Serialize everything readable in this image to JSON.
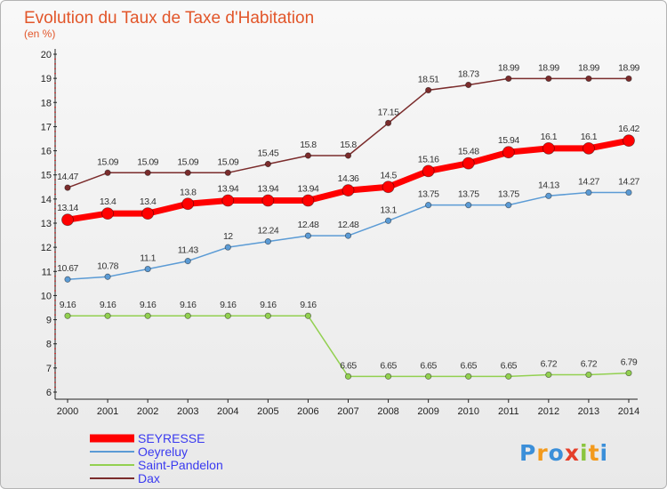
{
  "chart_data": {
    "type": "line",
    "title": "Evolution du Taux de Taxe d'Habitation",
    "subtitle": "(en %)",
    "xlabel": "",
    "ylabel": "",
    "categories": [
      "2000",
      "2001",
      "2002",
      "2003",
      "2004",
      "2005",
      "2006",
      "2007",
      "2008",
      "2009",
      "2010",
      "2011",
      "2012",
      "2013",
      "2014"
    ],
    "ylim": [
      6,
      20
    ],
    "yticks": [
      6,
      7,
      8,
      9,
      10,
      11,
      12,
      13,
      14,
      15,
      16,
      17,
      18,
      19,
      20
    ],
    "grid": false,
    "legend_position": "bottom-left",
    "series": [
      {
        "name": "SEYRESSE",
        "color": "#ff0000",
        "labels": [
          "13.14",
          "13.4",
          "13.4",
          "13.8",
          "13.94",
          "13.94",
          "13.94",
          "14.36",
          "14.5",
          "15.16",
          "15.48",
          "15.94",
          "16.1",
          "16.1",
          "16.42"
        ],
        "values": [
          13.14,
          13.4,
          13.4,
          13.8,
          13.94,
          13.94,
          13.94,
          14.36,
          14.5,
          15.16,
          15.48,
          15.94,
          16.1,
          16.1,
          16.42
        ]
      },
      {
        "name": "Oeyreluy",
        "color": "#5b9bd5",
        "labels": [
          "10.67",
          "10.78",
          "11.1",
          "11.43",
          "12",
          "12.24",
          "12.48",
          "12.48",
          "13.1",
          "13.75",
          "13.75",
          "13.75",
          "14.13",
          "14.27",
          "14.27"
        ],
        "values": [
          10.67,
          10.78,
          11.1,
          11.43,
          12,
          12.24,
          12.48,
          12.48,
          13.1,
          13.75,
          13.75,
          13.75,
          14.13,
          14.27,
          14.27
        ]
      },
      {
        "name": "Saint-Pandelon",
        "color": "#92d050",
        "labels": [
          "9.16",
          "9.16",
          "9.16",
          "9.16",
          "9.16",
          "9.16",
          "9.16",
          "6.65",
          "6.65",
          "6.65",
          "6.65",
          "6.65",
          "6.72",
          "6.72",
          "6.79"
        ],
        "values": [
          9.16,
          9.16,
          9.16,
          9.16,
          9.16,
          9.16,
          9.16,
          6.65,
          6.65,
          6.65,
          6.65,
          6.65,
          6.72,
          6.72,
          6.79
        ]
      },
      {
        "name": "Dax",
        "color": "#7b2c2c",
        "labels": [
          "14.47",
          "15.09",
          "15.09",
          "15.09",
          "15.09",
          "15.45",
          "15.8",
          "15.8",
          "17.15",
          "18.51",
          "18.73",
          "18.99",
          "18.99",
          "18.99",
          "18.99"
        ],
        "values": [
          14.47,
          15.09,
          15.09,
          15.09,
          15.09,
          15.45,
          15.8,
          15.8,
          17.15,
          18.51,
          18.73,
          18.99,
          18.99,
          18.99,
          18.99
        ]
      }
    ]
  },
  "logo": {
    "text": "Proxiti"
  }
}
